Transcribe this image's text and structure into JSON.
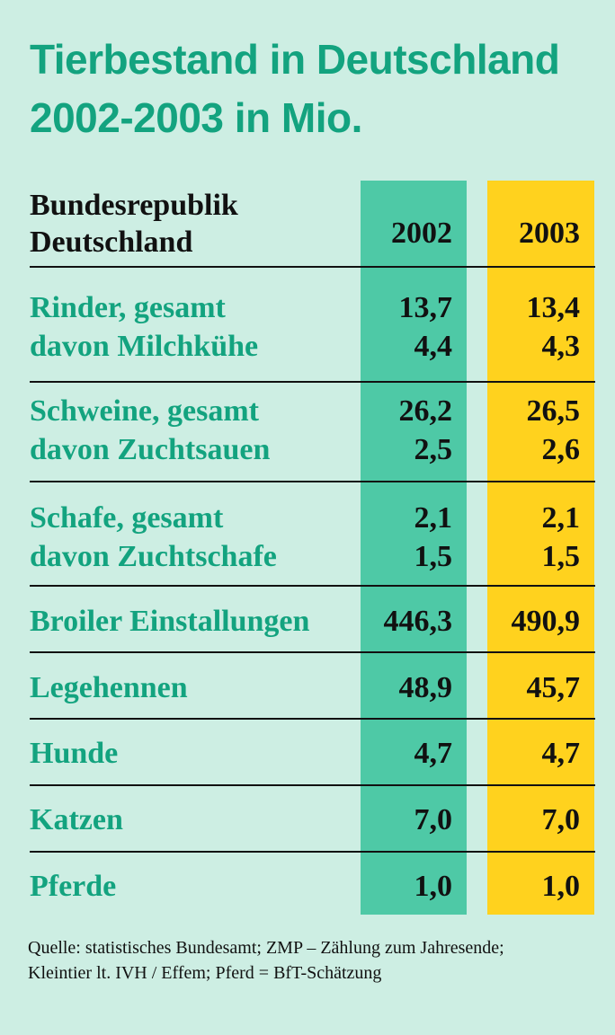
{
  "title_line1": "Tierbestand in Deutschland",
  "title_line2": "2002-2003 in Mio.",
  "header": {
    "label_line1": "Bundesrepublik",
    "label_line2": "Deutschland",
    "col1": "2002",
    "col2": "2003"
  },
  "colors": {
    "title": "#13a37f",
    "col2002": "#4ec9a6",
    "col2003": "#ffd21e",
    "background": "#cdeee3"
  },
  "chart_data": {
    "type": "table",
    "columns": [
      "2002",
      "2003"
    ],
    "rows": [
      {
        "label": "Rinder, gesamt",
        "values": [
          "13,7",
          "13,4"
        ]
      },
      {
        "label": "davon Milchkühe",
        "values": [
          "4,4",
          "4,3"
        ]
      },
      {
        "label": "Schweine, gesamt",
        "values": [
          "26,2",
          "26,5"
        ]
      },
      {
        "label": "davon Zuchtsauen",
        "values": [
          "2,5",
          "2,6"
        ]
      },
      {
        "label": "Schafe, gesamt",
        "values": [
          "2,1",
          "2,1"
        ]
      },
      {
        "label": "davon Zuchtschafe",
        "values": [
          "1,5",
          "1,5"
        ]
      },
      {
        "label": "Broiler Einstallungen",
        "values": [
          "446,3",
          "490,9"
        ]
      },
      {
        "label": "Legehennen",
        "values": [
          "48,9",
          "45,7"
        ]
      },
      {
        "label": "Hunde",
        "values": [
          "4,7",
          "4,7"
        ]
      },
      {
        "label": "Katzen",
        "values": [
          "7,0",
          "7,0"
        ]
      },
      {
        "label": "Pferde",
        "values": [
          "1,0",
          "1,0"
        ]
      }
    ]
  },
  "source_line1": "Quelle: statistisches Bundesamt; ZMP – Zählung zum Jahresende;",
  "source_line2": "Kleintier lt. IVH / Effem; Pferd = BfT-Schätzung"
}
